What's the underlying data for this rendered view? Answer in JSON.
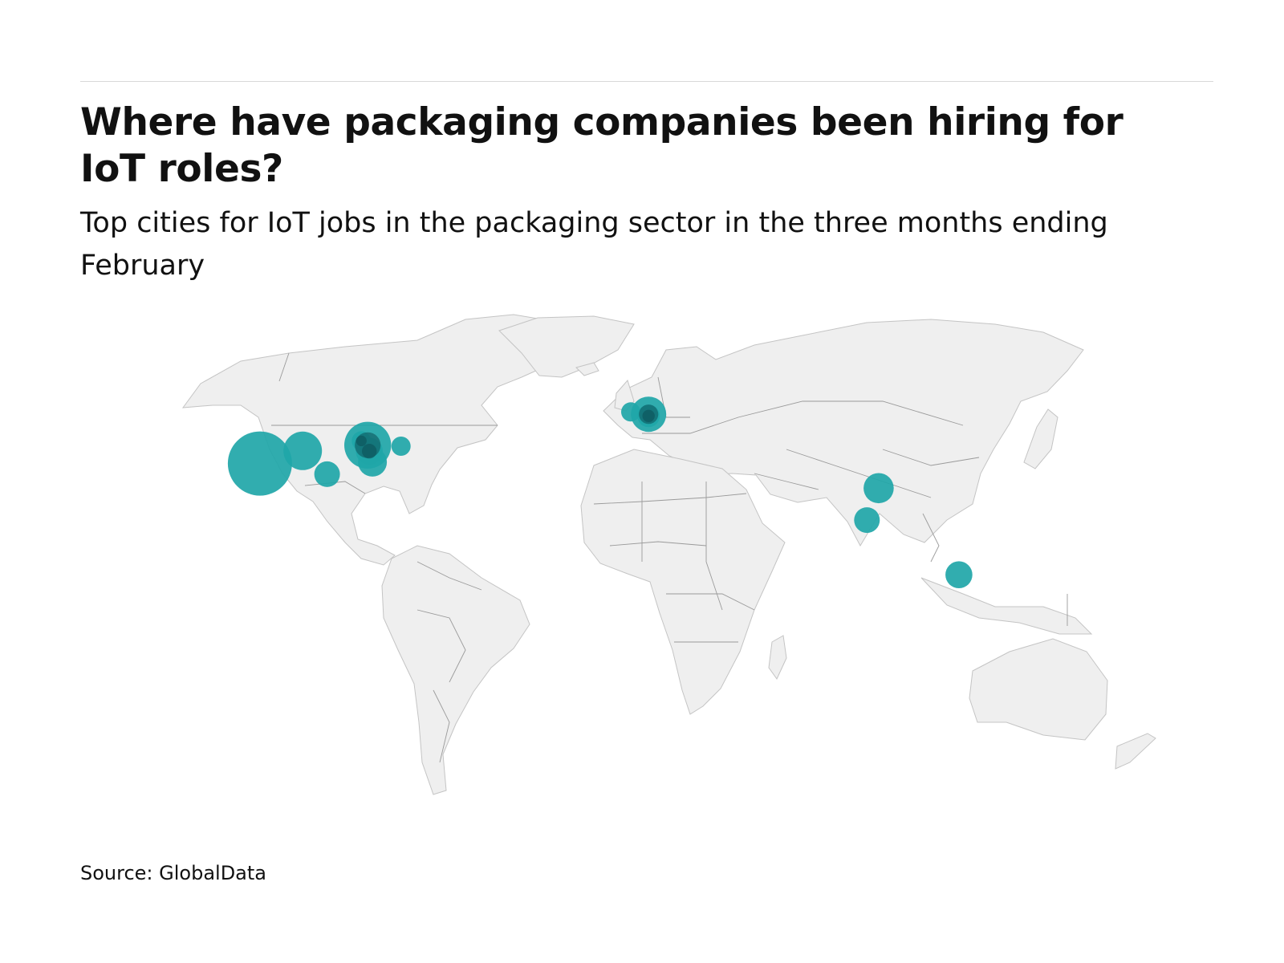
{
  "header": {
    "title": "Where have packaging companies been hiring for IoT roles?",
    "subtitle": "Top cities for IoT jobs in the packaging sector in the three months ending February"
  },
  "footer": {
    "source": "Source: GlobalData"
  },
  "map": {
    "type": "proportional-symbol",
    "basemap": "world",
    "land_color": "#efefef",
    "border_color": "#9a9a9a",
    "bubble_color": "#1fa6a8",
    "bubble_overlap_color": "#0b4f55",
    "markers": [
      {
        "region": "US West",
        "lat": 36.0,
        "lon": -118.0,
        "relative_size": 1.0
      },
      {
        "region": "US Mountain",
        "lat": 39.8,
        "lon": -104.5,
        "relative_size": 0.6
      },
      {
        "region": "US Texas",
        "lat": 32.8,
        "lon": -96.8,
        "relative_size": 0.4
      },
      {
        "region": "US Midwest",
        "lat": 41.5,
        "lon": -84.0,
        "relative_size": 0.73
      },
      {
        "region": "US Great Lakes",
        "lat": 42.8,
        "lon": -86.0,
        "relative_size": 0.3
      },
      {
        "region": "US Ohio",
        "lat": 39.7,
        "lon": -83.5,
        "relative_size": 0.42
      },
      {
        "region": "US Carolinas",
        "lat": 36.4,
        "lon": -82.5,
        "relative_size": 0.45
      },
      {
        "region": "US Northeast",
        "lat": 41.2,
        "lon": -73.5,
        "relative_size": 0.3
      },
      {
        "region": "UK",
        "lat": 51.5,
        "lon": -1.0,
        "relative_size": 0.3
      },
      {
        "region": "Belgium/Netherlands",
        "lat": 50.8,
        "lon": 4.6,
        "relative_size": 0.55
      },
      {
        "region": "Belgium",
        "lat": 50.3,
        "lon": 4.6,
        "relative_size": 0.35
      },
      {
        "region": "Northern India",
        "lat": 28.6,
        "lon": 77.2,
        "relative_size": 0.47
      },
      {
        "region": "Western India",
        "lat": 19.0,
        "lon": 73.5,
        "relative_size": 0.4
      },
      {
        "region": "Singapore/Malaysia",
        "lat": 2.6,
        "lon": 102.5,
        "relative_size": 0.42
      }
    ]
  }
}
